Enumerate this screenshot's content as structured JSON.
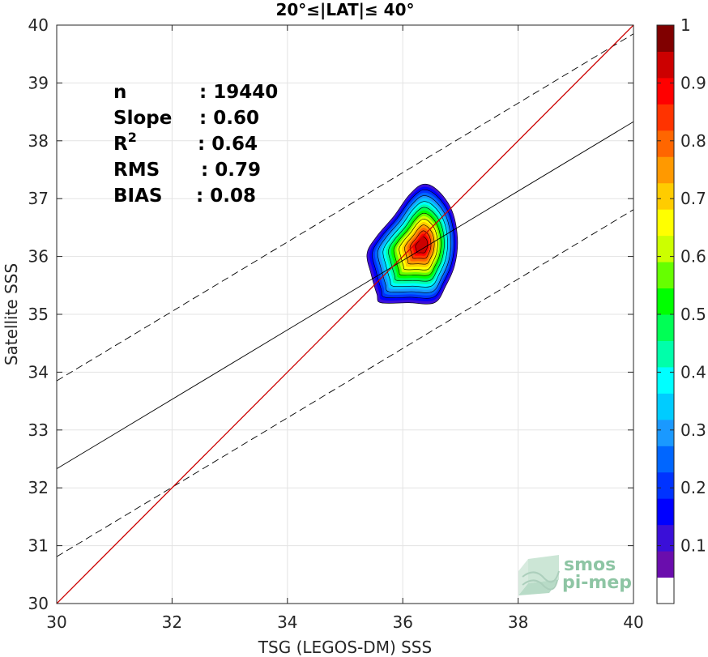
{
  "chart_data": {
    "type": "scatter",
    "title": "20°≤|LAT|≤ 40°",
    "xlabel": "TSG (LEGOS-DM) SSS",
    "ylabel": "Satellite SSS",
    "xlim": [
      30,
      40
    ],
    "ylim": [
      30,
      40
    ],
    "x_ticks": [
      30,
      32,
      34,
      36,
      38,
      40
    ],
    "y_ticks": [
      30,
      31,
      32,
      33,
      34,
      35,
      36,
      37,
      38,
      39,
      40
    ],
    "grid": true,
    "stats": [
      {
        "label": "n",
        "sep": ":",
        "value": "19440"
      },
      {
        "label": "Slope",
        "sep": ":",
        "value": "0.60"
      },
      {
        "label": "R",
        "sup": "2",
        "sep": ":",
        "value": "0.64"
      },
      {
        "label": "RMS",
        "sep": ":",
        "value": "0.79"
      },
      {
        "label": "BIAS",
        "sep": ":",
        "value": "0.08"
      }
    ],
    "lines": {
      "identity": {
        "x": [
          30,
          40
        ],
        "y": [
          30,
          40
        ],
        "color": "#cc0000"
      },
      "regression": {
        "x": [
          30,
          40
        ],
        "y": [
          32.33,
          38.33
        ],
        "color": "#000000"
      },
      "upper_bound": {
        "x": [
          30,
          40
        ],
        "y": [
          33.85,
          39.85
        ],
        "color": "#000000",
        "dash": true
      },
      "lower_bound": {
        "x": [
          30,
          40
        ],
        "y": [
          30.81,
          36.81
        ],
        "color": "#000000",
        "dash": true
      }
    },
    "density": {
      "center": [
        36.35,
        36.2
      ],
      "levels": [
        0.1,
        0.2,
        0.3,
        0.4,
        0.5,
        0.6,
        0.7,
        0.8,
        0.9
      ],
      "outer_contour": [
        [
          35.62,
          35.2
        ],
        [
          36.1,
          35.2
        ],
        [
          36.55,
          35.2
        ],
        [
          36.75,
          35.5
        ],
        [
          36.9,
          35.85
        ],
        [
          36.95,
          36.3
        ],
        [
          36.85,
          36.8
        ],
        [
          36.6,
          37.15
        ],
        [
          36.35,
          37.25
        ],
        [
          36.1,
          37.05
        ],
        [
          35.85,
          36.7
        ],
        [
          35.55,
          36.35
        ],
        [
          35.38,
          36.05
        ],
        [
          35.45,
          35.7
        ],
        [
          35.55,
          35.35
        ]
      ]
    },
    "colorbar": {
      "ticks": [
        0.1,
        0.2,
        0.3,
        0.4,
        0.5,
        0.6,
        0.7,
        0.8,
        0.9,
        1
      ],
      "tick_labels": [
        "0.1",
        "0.2",
        "0.3",
        "0.4",
        "0.5",
        "0.6",
        "0.7",
        "0.8",
        "0.9",
        "1"
      ],
      "colors": [
        "#ffffff",
        "#6a0dad",
        "#3a0fd8",
        "#0000ff",
        "#0033ff",
        "#0066ff",
        "#1a99ff",
        "#00ccff",
        "#00ffff",
        "#00ffaa",
        "#00ff55",
        "#00ff00",
        "#66ff00",
        "#ccff00",
        "#ffff00",
        "#ffcc00",
        "#ff9900",
        "#ff6600",
        "#ff3300",
        "#ff0000",
        "#cc0000",
        "#800000"
      ]
    }
  },
  "watermark": {
    "line1": "smos",
    "line2": "pi-mep"
  }
}
